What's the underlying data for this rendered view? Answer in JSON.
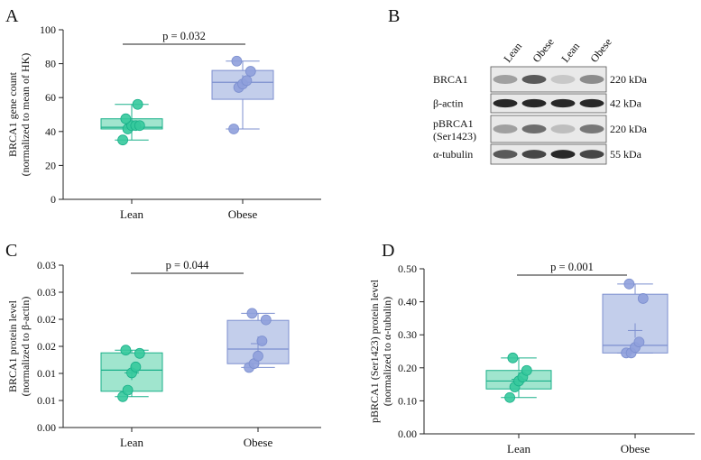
{
  "colors": {
    "lean_fill": "#8fe0c6",
    "lean_stroke": "#1ab08a",
    "lean_point": "#35c99c",
    "obese_fill": "#b9c6e8",
    "obese_stroke": "#7c8fcf",
    "obese_point": "#8fa0dc",
    "axis": "#222222"
  },
  "chart_data": [
    {
      "id": "A",
      "type": "box",
      "panel_letter": "A",
      "ylabel_line1": "BRCA1 gene count",
      "ylabel_line2": "(normalized to mean of HK)",
      "ylim": [
        0,
        100
      ],
      "yticks": [
        0,
        20,
        40,
        60,
        80,
        100
      ],
      "tick_labels": [
        "0",
        "20",
        "40",
        "60",
        "80",
        "100"
      ],
      "pvalue_label": "p = 0.032",
      "groups": [
        {
          "name": "Lean",
          "min": 35,
          "q1": 41.5,
          "median": 42.5,
          "q3": 47.5,
          "max": 56,
          "mean": 44,
          "points": [
            35,
            41.5,
            43.5,
            43.5,
            43.5,
            47.5,
            56
          ]
        },
        {
          "name": "Obese",
          "min": 41.5,
          "q1": 59,
          "median": 69,
          "q3": 76,
          "max": 81.5,
          "mean": 69,
          "points": [
            41.5,
            66,
            68,
            70,
            75.5,
            81.5
          ]
        }
      ]
    },
    {
      "id": "C",
      "type": "box",
      "panel_letter": "C",
      "ylabel_line1": "BRCA1 protein level",
      "ylabel_line2": "(normalized to β-actin)",
      "ylim": [
        0,
        0.03
      ],
      "yticks": [
        0,
        0.005,
        0.01,
        0.015,
        0.02,
        0.025,
        0.03
      ],
      "tick_labels": [
        "0.00",
        "0.01",
        "0.01",
        "0.02",
        "0.02",
        "0.03",
        "0.03"
      ],
      "pvalue_label": "p = 0.044",
      "groups": [
        {
          "name": "Lean",
          "min": 0.0057,
          "q1": 0.0067,
          "median": 0.0106,
          "q3": 0.0138,
          "max": 0.0143,
          "mean": 0.0101,
          "points": [
            0.0057,
            0.0069,
            0.0101,
            0.0112,
            0.0137,
            0.0143
          ]
        },
        {
          "name": "Obese",
          "min": 0.0111,
          "q1": 0.0118,
          "median": 0.0145,
          "q3": 0.0198,
          "max": 0.0211,
          "mean": 0.0155,
          "points": [
            0.0111,
            0.0118,
            0.0132,
            0.016,
            0.0199,
            0.0211
          ]
        }
      ]
    },
    {
      "id": "D",
      "type": "box",
      "panel_letter": "D",
      "ylabel_line1": "pBRCA1 (Ser1423) protein level",
      "ylabel_line2": "(normalized to α-tubulin)",
      "ylim": [
        0,
        0.5
      ],
      "yticks": [
        0,
        0.1,
        0.2,
        0.3,
        0.4,
        0.5
      ],
      "tick_labels": [
        "0.00",
        "0.10",
        "0.20",
        "0.30",
        "0.40",
        "0.50"
      ],
      "pvalue_label": "p = 0.001",
      "groups": [
        {
          "name": "Lean",
          "min": 0.11,
          "q1": 0.136,
          "median": 0.16,
          "q3": 0.192,
          "max": 0.23,
          "mean": 0.165,
          "points": [
            0.11,
            0.142,
            0.16,
            0.172,
            0.192,
            0.23
          ]
        },
        {
          "name": "Obese",
          "min": 0.245,
          "q1": 0.245,
          "median": 0.268,
          "q3": 0.423,
          "max": 0.454,
          "mean": 0.313,
          "points": [
            0.245,
            0.245,
            0.262,
            0.278,
            0.41,
            0.454
          ]
        }
      ]
    }
  ],
  "western_blot": {
    "panel_letter": "B",
    "lanes": [
      "Lean",
      "Obese",
      "Lean",
      "Obese"
    ],
    "rows": [
      {
        "label": "BRCA1",
        "label2": "",
        "kda": "220 kDa",
        "intensity": [
          0.35,
          0.7,
          0.15,
          0.45
        ]
      },
      {
        "label": "β-actin",
        "label2": "",
        "kda": "42 kDa",
        "intensity": [
          0.95,
          0.95,
          0.95,
          0.95
        ]
      },
      {
        "label": "pBRCA1",
        "label2": "(Ser1423)",
        "kda": "220 kDa",
        "intensity": [
          0.35,
          0.6,
          0.2,
          0.55
        ]
      },
      {
        "label": "α-tubulin",
        "label2": "",
        "kda": "55 kDa",
        "intensity": [
          0.7,
          0.8,
          0.95,
          0.8
        ]
      }
    ]
  }
}
